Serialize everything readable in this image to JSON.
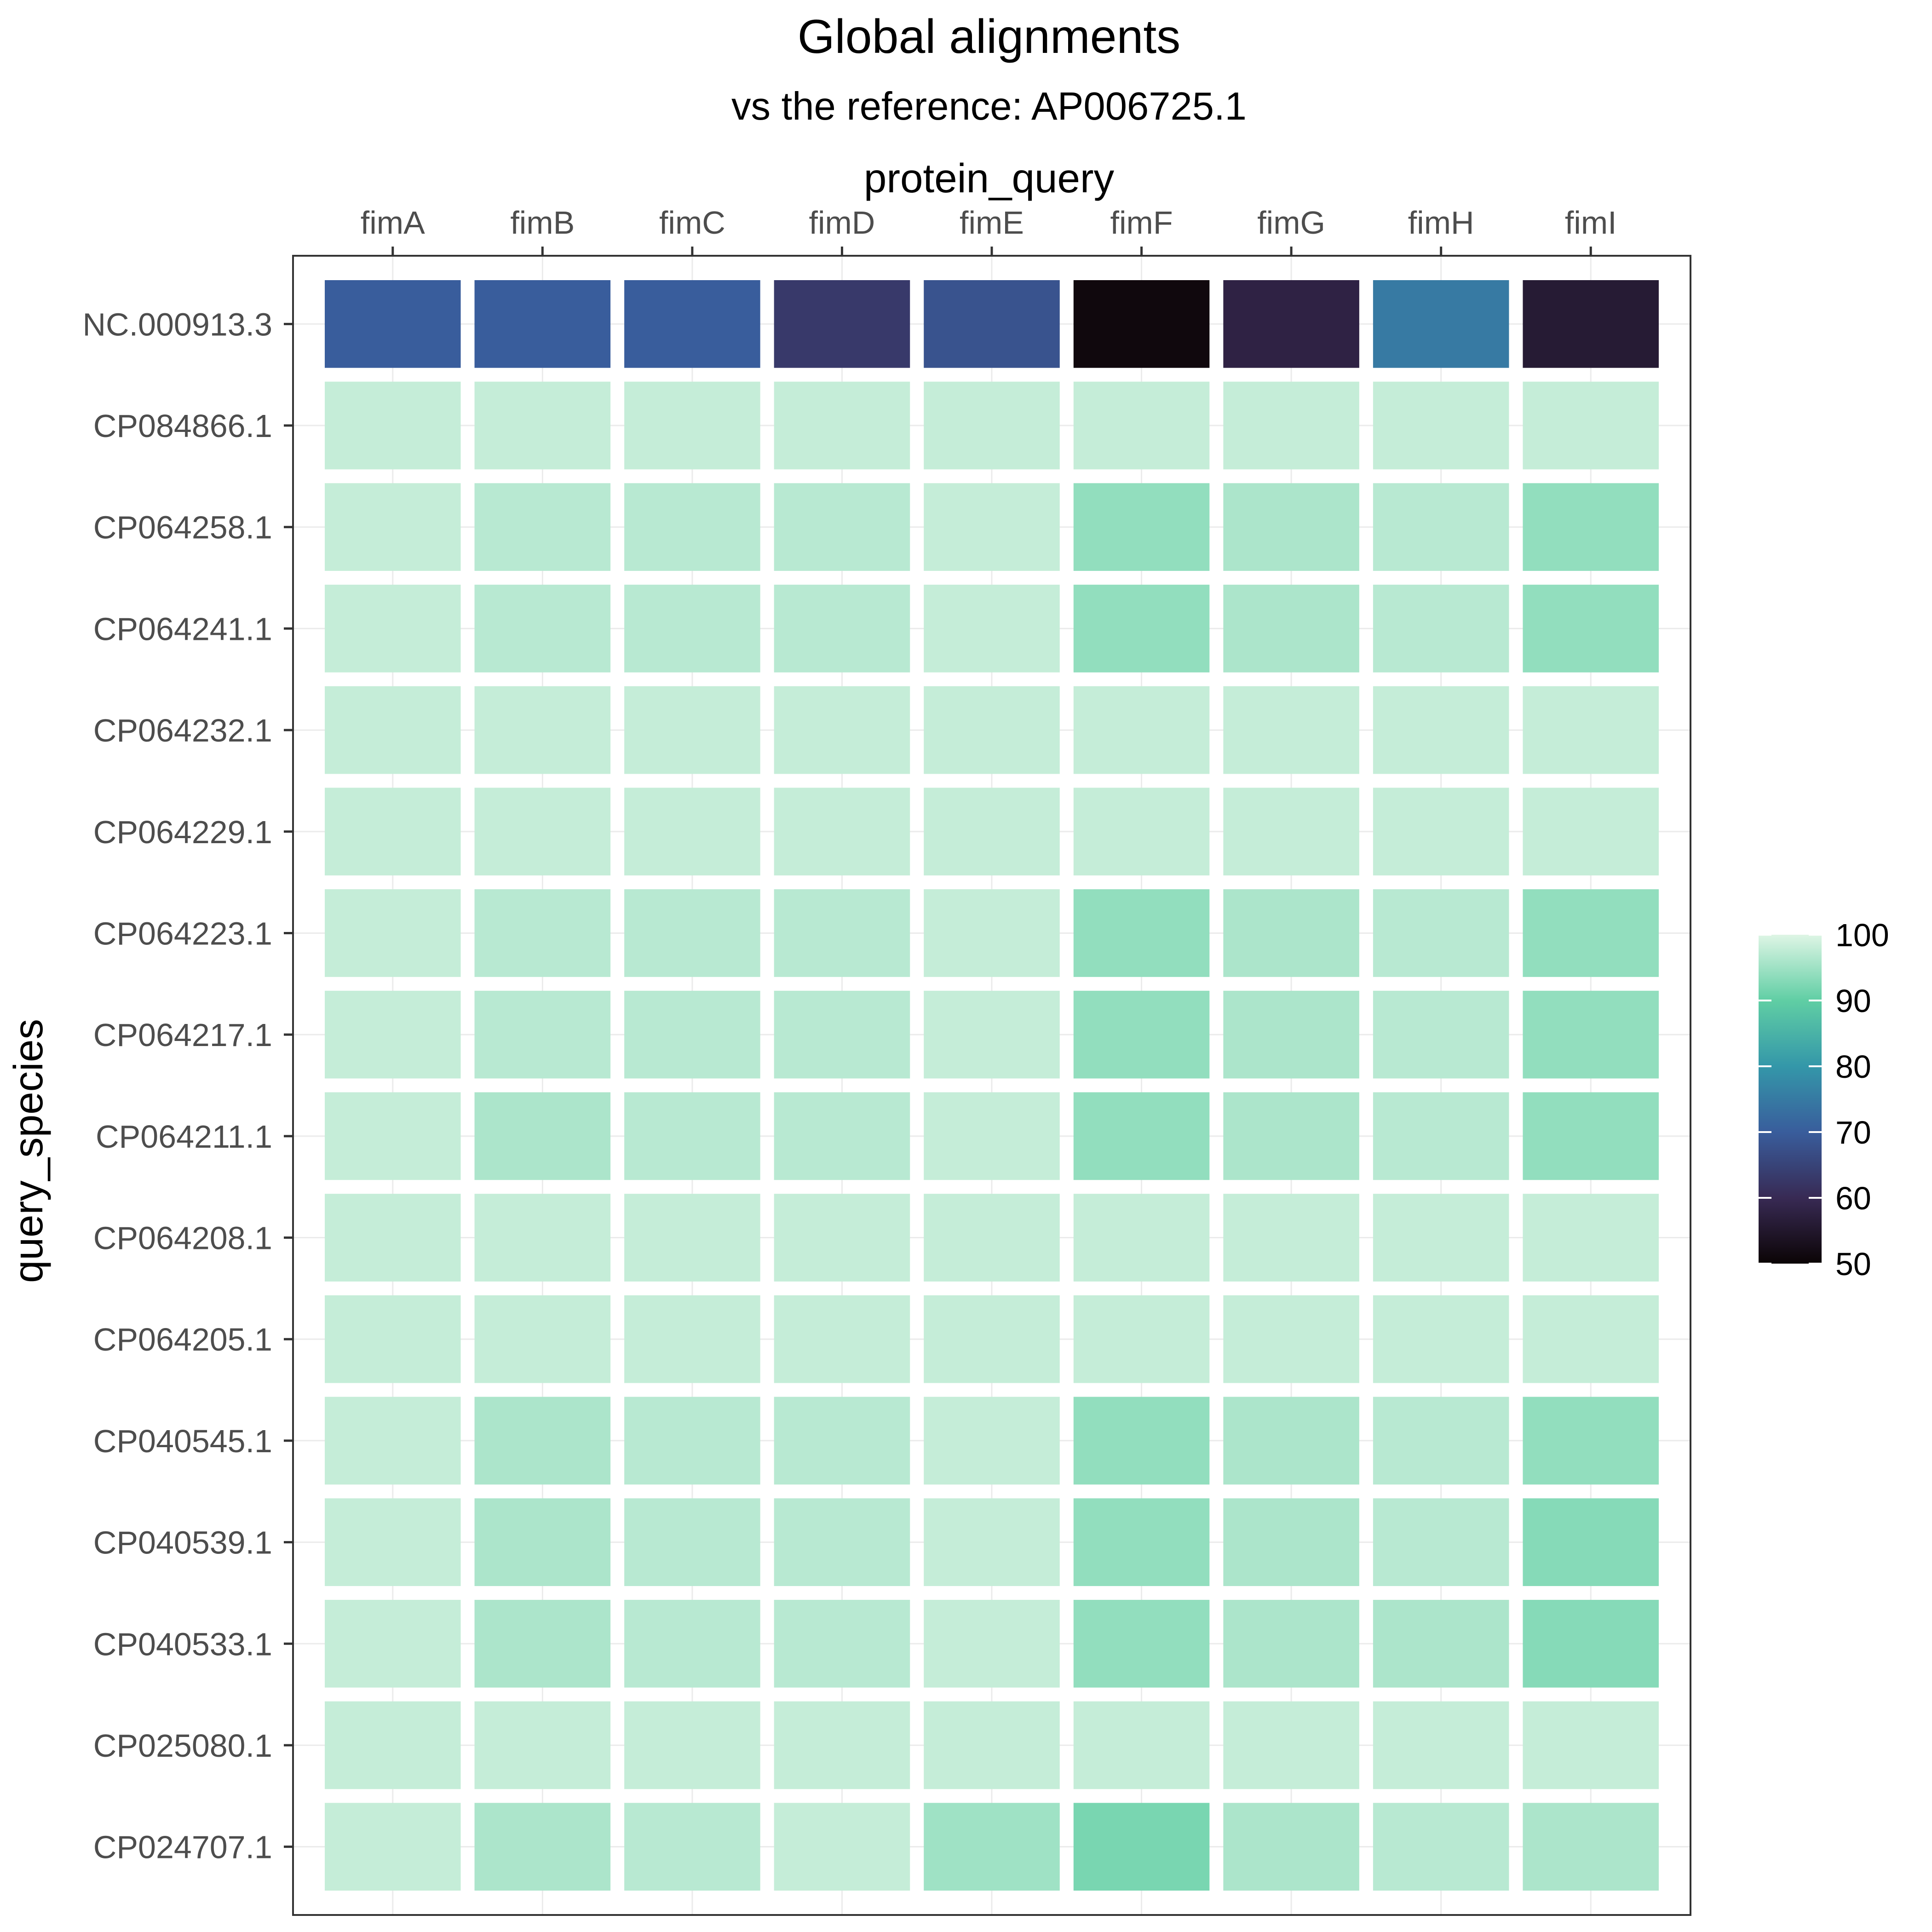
{
  "chart_data": {
    "type": "heatmap",
    "title": "Global alignments",
    "subtitle": "vs the reference: AP006725.1",
    "xlabel": "protein_query",
    "ylabel": "query_species",
    "x_axis_position": "top",
    "columns": [
      "fimA",
      "fimB",
      "fimC",
      "fimD",
      "fimE",
      "fimF",
      "fimG",
      "fimH",
      "fimI"
    ],
    "rows": [
      "NC.000913.3",
      "CP084866.1",
      "CP064258.1",
      "CP064241.1",
      "CP064232.1",
      "CP064229.1",
      "CP064223.1",
      "CP064217.1",
      "CP064211.1",
      "CP064208.1",
      "CP064205.1",
      "CP040545.1",
      "CP040539.1",
      "CP040533.1",
      "CP025080.1",
      "CP024707.1"
    ],
    "values": [
      [
        70,
        70,
        70,
        63,
        68,
        51,
        58,
        75,
        56
      ],
      [
        98,
        98,
        98,
        98,
        98,
        98,
        98,
        98,
        98
      ],
      [
        98,
        97,
        97,
        97,
        98,
        94,
        96,
        97,
        94
      ],
      [
        98,
        97,
        97,
        97,
        98,
        94,
        96,
        97,
        94
      ],
      [
        98,
        98,
        98,
        98,
        98,
        98,
        98,
        98,
        98
      ],
      [
        98,
        98,
        98,
        98,
        98,
        98,
        98,
        98,
        98
      ],
      [
        98,
        97,
        97,
        97,
        98,
        94,
        96,
        97,
        94
      ],
      [
        98,
        97,
        97,
        97,
        98,
        94,
        96,
        97,
        94
      ],
      [
        98,
        96,
        97,
        97,
        98,
        94,
        96,
        97,
        94
      ],
      [
        98,
        98,
        98,
        98,
        98,
        98,
        98,
        98,
        98
      ],
      [
        98,
        98,
        98,
        98,
        98,
        98,
        98,
        98,
        98
      ],
      [
        98,
        96,
        97,
        97,
        98,
        94,
        96,
        97,
        94
      ],
      [
        98,
        96,
        97,
        97,
        98,
        94,
        96,
        97,
        93
      ],
      [
        98,
        96,
        97,
        97,
        98,
        94,
        96,
        96,
        93
      ],
      [
        98,
        98,
        98,
        98,
        98,
        98,
        98,
        98,
        98
      ],
      [
        98,
        96,
        97,
        98,
        95,
        92,
        96,
        97,
        96
      ]
    ],
    "color_scale": {
      "min": 50,
      "max": 100,
      "ticks": [
        50,
        60,
        70,
        80,
        90,
        100
      ],
      "stops": [
        {
          "value": 50,
          "color": "#0b0405"
        },
        {
          "value": 60,
          "color": "#382a54"
        },
        {
          "value": 70,
          "color": "#395d9c"
        },
        {
          "value": 80,
          "color": "#3497a9"
        },
        {
          "value": 90,
          "color": "#60cea4"
        },
        {
          "value": 100,
          "color": "#def5e5"
        }
      ]
    },
    "legend_position": "right",
    "grid": false
  }
}
